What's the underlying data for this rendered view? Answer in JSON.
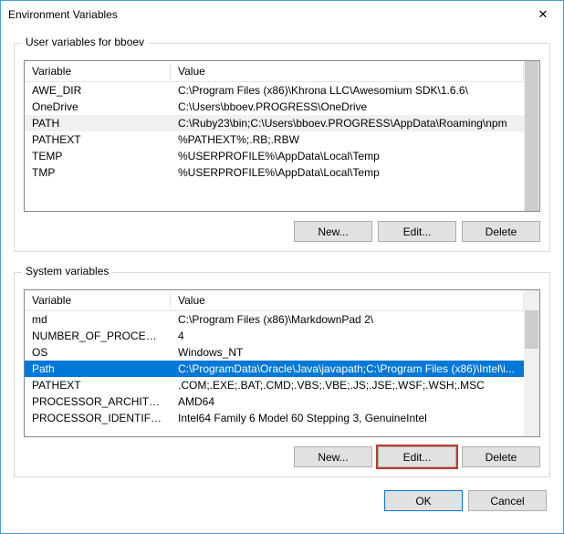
{
  "window": {
    "title": "Environment Variables",
    "close_icon": "✕"
  },
  "user_group": {
    "title": "User variables for bboev",
    "columns": {
      "variable": "Variable",
      "value": "Value"
    },
    "rows": [
      {
        "variable": "AWE_DIR",
        "value": "C:\\Program Files (x86)\\Khrona LLC\\Awesomium SDK\\1.6.6\\",
        "selected": false
      },
      {
        "variable": "OneDrive",
        "value": "C:\\Users\\bboev.PROGRESS\\OneDrive",
        "selected": false
      },
      {
        "variable": "PATH",
        "value": "C:\\Ruby23\\bin;C:\\Users\\bboev.PROGRESS\\AppData\\Roaming\\npm",
        "selected": true
      },
      {
        "variable": "PATHEXT",
        "value": "%PATHEXT%;.RB;.RBW",
        "selected": false
      },
      {
        "variable": "TEMP",
        "value": "%USERPROFILE%\\AppData\\Local\\Temp",
        "selected": false
      },
      {
        "variable": "TMP",
        "value": "%USERPROFILE%\\AppData\\Local\\Temp",
        "selected": false
      }
    ],
    "buttons": {
      "new": "New...",
      "edit": "Edit...",
      "delete": "Delete"
    }
  },
  "system_group": {
    "title": "System variables",
    "columns": {
      "variable": "Variable",
      "value": "Value"
    },
    "rows": [
      {
        "variable": "md",
        "value": "C:\\Program Files (x86)\\MarkdownPad 2\\",
        "selected": false
      },
      {
        "variable": "NUMBER_OF_PROCESSORS",
        "value": "4",
        "selected": false
      },
      {
        "variable": "OS",
        "value": "Windows_NT",
        "selected": false
      },
      {
        "variable": "Path",
        "value": "C:\\ProgramData\\Oracle\\Java\\javapath;C:\\Program Files (x86)\\Intel\\i...",
        "selected": true
      },
      {
        "variable": "PATHEXT",
        "value": ".COM;.EXE;.BAT;.CMD;.VBS;.VBE;.JS;.JSE;.WSF;.WSH;.MSC",
        "selected": false
      },
      {
        "variable": "PROCESSOR_ARCHITECTURE",
        "value": "AMD64",
        "selected": false
      },
      {
        "variable": "PROCESSOR_IDENTIFIER",
        "value": "Intel64 Family 6 Model 60 Stepping 3, GenuineIntel",
        "selected": false
      }
    ],
    "buttons": {
      "new": "New...",
      "edit": "Edit...",
      "delete": "Delete"
    },
    "scroll_thumb": {
      "top_pct": 14,
      "height_pct": 26
    }
  },
  "dialog_buttons": {
    "ok": "OK",
    "cancel": "Cancel"
  },
  "colors": {
    "window_border": "#4a9edc",
    "selection_blue": "#0078d7",
    "selection_grey": "#f0f0f0",
    "highlight_red": "#c0392b",
    "button_bg": "#e1e1e1",
    "button_border": "#adadad"
  }
}
